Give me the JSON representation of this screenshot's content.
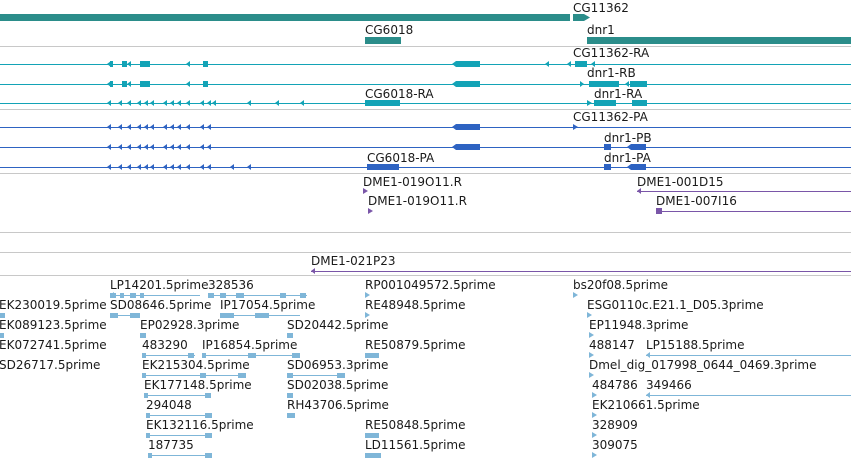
{
  "colors": {
    "gene": "#2b8d8a",
    "mrna_rna": "#13a3b6",
    "mrna_pep": "#2e63c2",
    "clone": "#7a56a8",
    "est": "#7fb6d8",
    "divider": "#c8c8c8"
  },
  "tracks": {
    "gene": {
      "labels": [
        "CG11362",
        "CG6018",
        "dnr1"
      ]
    },
    "rna": {
      "labels": [
        "CG11362-RA",
        "dnr1-RB",
        "CG6018-RA",
        "dnr1-RA"
      ]
    },
    "pep": {
      "labels": [
        "CG11362-PA",
        "dnr1-PB",
        "CG6018-PA",
        "dnr1-PA"
      ]
    },
    "clones": {
      "labels": [
        "DME1-019O11.R",
        "DME1-001D15",
        "DME1-019O11.R",
        "DME1-007I16",
        "DME1-021P23"
      ]
    },
    "est": {
      "labels": [
        "LP14201.5prime",
        "328536",
        "RP001049572.5prime",
        "bs20f08.5prime",
        "EK230019.5prime",
        "SD08646.5prime",
        "IP17054.5prime",
        "RE48948.5prime",
        "ESG0110c.E21.1_D05.3prime",
        "EK089123.5prime",
        "EP02928.3prime",
        "SD20442.5prime",
        "EP11948.3prime",
        "EK072741.5prime",
        "483290",
        "IP16854.5prime",
        "RE50879.5prime",
        "488147",
        "LP15188.5prime",
        "SD26717.5prime",
        "EK215304.5prime",
        "SD06953.3prime",
        "Dmel_dig_017998_0644_0469.3prime",
        "EK177148.5prime",
        "SD02038.5prime",
        "484786",
        "349466",
        "294048",
        "RH43706.5prime",
        "EK210661.5prime",
        "EK132116.5prime",
        "RE50848.5prime",
        "328909",
        "187735",
        "LD11561.5prime",
        "309075"
      ]
    }
  }
}
